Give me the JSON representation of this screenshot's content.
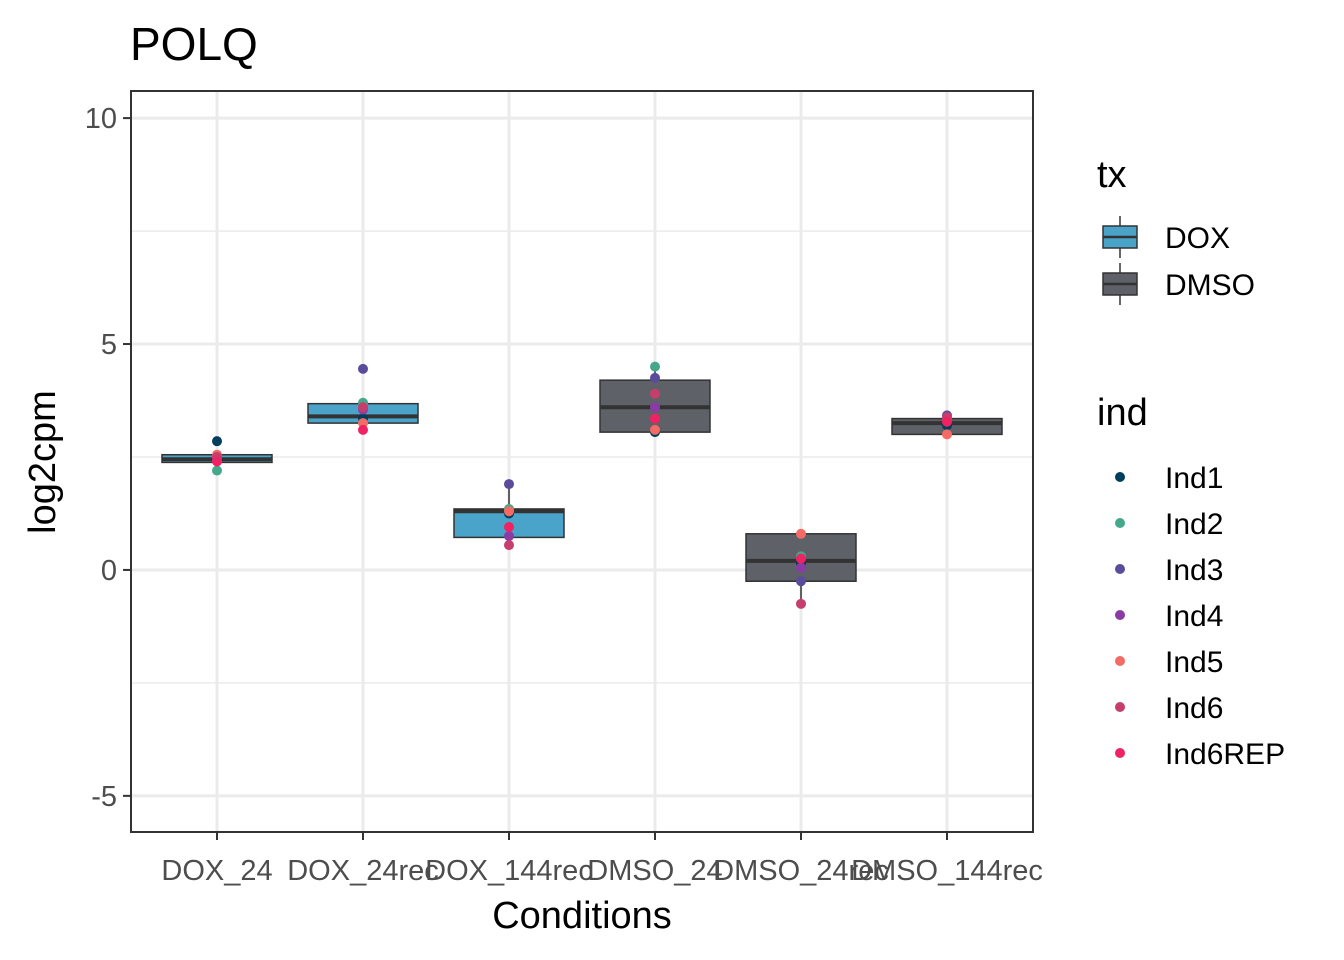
{
  "chart_data": {
    "type": "box",
    "title": "POLQ",
    "xlabel": "Conditions",
    "ylabel": "log2cpm",
    "ylim": [
      -5.8,
      10.6
    ],
    "yticks": [
      -5,
      0,
      5,
      10
    ],
    "ytick_labels": [
      "-5",
      "0",
      "5",
      "10"
    ],
    "grid": true,
    "categories": [
      "DOX_24",
      "DOX_24rec",
      "DOX_144rec",
      "DMSO_24",
      "DMSO_24rec",
      "DMSO_144rec"
    ],
    "boxes": [
      {
        "category": "DOX_24",
        "tx": "DOX",
        "q1": 2.38,
        "median": 2.45,
        "q3": 2.55,
        "whisker_low": 2.38,
        "whisker_high": 2.55
      },
      {
        "category": "DOX_24rec",
        "tx": "DOX",
        "q1": 3.25,
        "median": 3.4,
        "q3": 3.68,
        "whisker_low": 3.1,
        "whisker_high": 3.68
      },
      {
        "category": "DOX_144rec",
        "tx": "DOX",
        "q1": 0.72,
        "median": 1.3,
        "q3": 1.35,
        "whisker_low": 0.55,
        "whisker_high": 1.9
      },
      {
        "category": "DMSO_24",
        "tx": "DMSO",
        "q1": 3.05,
        "median": 3.6,
        "q3": 4.2,
        "whisker_low": 3.0,
        "whisker_high": 4.5
      },
      {
        "category": "DMSO_24rec",
        "tx": "DMSO",
        "q1": -0.25,
        "median": 0.2,
        "q3": 0.8,
        "whisker_low": -0.75,
        "whisker_high": 0.8
      },
      {
        "category": "DMSO_144rec",
        "tx": "DMSO",
        "q1": 3.0,
        "median": 3.25,
        "q3": 3.35,
        "whisker_low": 3.0,
        "whisker_high": 3.42
      }
    ],
    "points": [
      {
        "category": "DOX_24",
        "ind": "Ind1",
        "y": 2.85
      },
      {
        "category": "DOX_24",
        "ind": "Ind2",
        "y": 2.2
      },
      {
        "category": "DOX_24",
        "ind": "Ind3",
        "y": 2.48
      },
      {
        "category": "DOX_24",
        "ind": "Ind4",
        "y": 2.42
      },
      {
        "category": "DOX_24",
        "ind": "Ind5",
        "y": 2.55
      },
      {
        "category": "DOX_24",
        "ind": "Ind6",
        "y": 2.5
      },
      {
        "category": "DOX_24",
        "ind": "Ind6REP",
        "y": 2.4
      },
      {
        "category": "DOX_24rec",
        "ind": "Ind1",
        "y": 3.35
      },
      {
        "category": "DOX_24rec",
        "ind": "Ind2",
        "y": 3.7
      },
      {
        "category": "DOX_24rec",
        "ind": "Ind3",
        "y": 4.45
      },
      {
        "category": "DOX_24rec",
        "ind": "Ind4",
        "y": 3.55
      },
      {
        "category": "DOX_24rec",
        "ind": "Ind5",
        "y": 3.25
      },
      {
        "category": "DOX_24rec",
        "ind": "Ind6",
        "y": 3.6
      },
      {
        "category": "DOX_24rec",
        "ind": "Ind6REP",
        "y": 3.1
      },
      {
        "category": "DOX_144rec",
        "ind": "Ind1",
        "y": 1.25
      },
      {
        "category": "DOX_144rec",
        "ind": "Ind2",
        "y": 1.35
      },
      {
        "category": "DOX_144rec",
        "ind": "Ind3",
        "y": 1.9
      },
      {
        "category": "DOX_144rec",
        "ind": "Ind4",
        "y": 0.75
      },
      {
        "category": "DOX_144rec",
        "ind": "Ind5",
        "y": 1.3
      },
      {
        "category": "DOX_144rec",
        "ind": "Ind6",
        "y": 0.55
      },
      {
        "category": "DOX_144rec",
        "ind": "Ind6REP",
        "y": 0.95
      },
      {
        "category": "DMSO_24",
        "ind": "Ind1",
        "y": 3.05
      },
      {
        "category": "DMSO_24",
        "ind": "Ind2",
        "y": 4.5
      },
      {
        "category": "DMSO_24",
        "ind": "Ind3",
        "y": 4.25
      },
      {
        "category": "DMSO_24",
        "ind": "Ind4",
        "y": 3.6
      },
      {
        "category": "DMSO_24",
        "ind": "Ind5",
        "y": 3.1
      },
      {
        "category": "DMSO_24",
        "ind": "Ind6",
        "y": 3.9
      },
      {
        "category": "DMSO_24",
        "ind": "Ind6REP",
        "y": 3.35
      },
      {
        "category": "DMSO_24rec",
        "ind": "Ind1",
        "y": 0.15
      },
      {
        "category": "DMSO_24rec",
        "ind": "Ind2",
        "y": 0.3
      },
      {
        "category": "DMSO_24rec",
        "ind": "Ind3",
        "y": -0.25
      },
      {
        "category": "DMSO_24rec",
        "ind": "Ind4",
        "y": 0.05
      },
      {
        "category": "DMSO_24rec",
        "ind": "Ind5",
        "y": 0.8
      },
      {
        "category": "DMSO_24rec",
        "ind": "Ind6",
        "y": -0.75
      },
      {
        "category": "DMSO_24rec",
        "ind": "Ind6REP",
        "y": 0.25
      },
      {
        "category": "DMSO_144rec",
        "ind": "Ind1",
        "y": 3.2
      },
      {
        "category": "DMSO_144rec",
        "ind": "Ind2",
        "y": 3.35
      },
      {
        "category": "DMSO_144rec",
        "ind": "Ind3",
        "y": 3.42
      },
      {
        "category": "DMSO_144rec",
        "ind": "Ind4",
        "y": 3.3
      },
      {
        "category": "DMSO_144rec",
        "ind": "Ind5",
        "y": 3.0
      },
      {
        "category": "DMSO_144rec",
        "ind": "Ind6",
        "y": 3.38
      },
      {
        "category": "DMSO_144rec",
        "ind": "Ind6REP",
        "y": 3.28
      }
    ],
    "legend_tx": {
      "title": "tx",
      "placement": "right",
      "entries": [
        {
          "label": "DOX",
          "color": "#4aa3c8"
        },
        {
          "label": "DMSO",
          "color": "#5f6168"
        }
      ]
    },
    "legend_ind": {
      "title": "ind",
      "placement": "right",
      "entries": [
        {
          "label": "Ind1",
          "color": "#003f5c"
        },
        {
          "label": "Ind2",
          "color": "#45a88a"
        },
        {
          "label": "Ind3",
          "color": "#5a4c9a"
        },
        {
          "label": "Ind4",
          "color": "#8a3ca4"
        },
        {
          "label": "Ind5",
          "color": "#f46a65"
        },
        {
          "label": "Ind6",
          "color": "#c53e6c"
        },
        {
          "label": "Ind6REP",
          "color": "#ef2264"
        }
      ]
    }
  }
}
